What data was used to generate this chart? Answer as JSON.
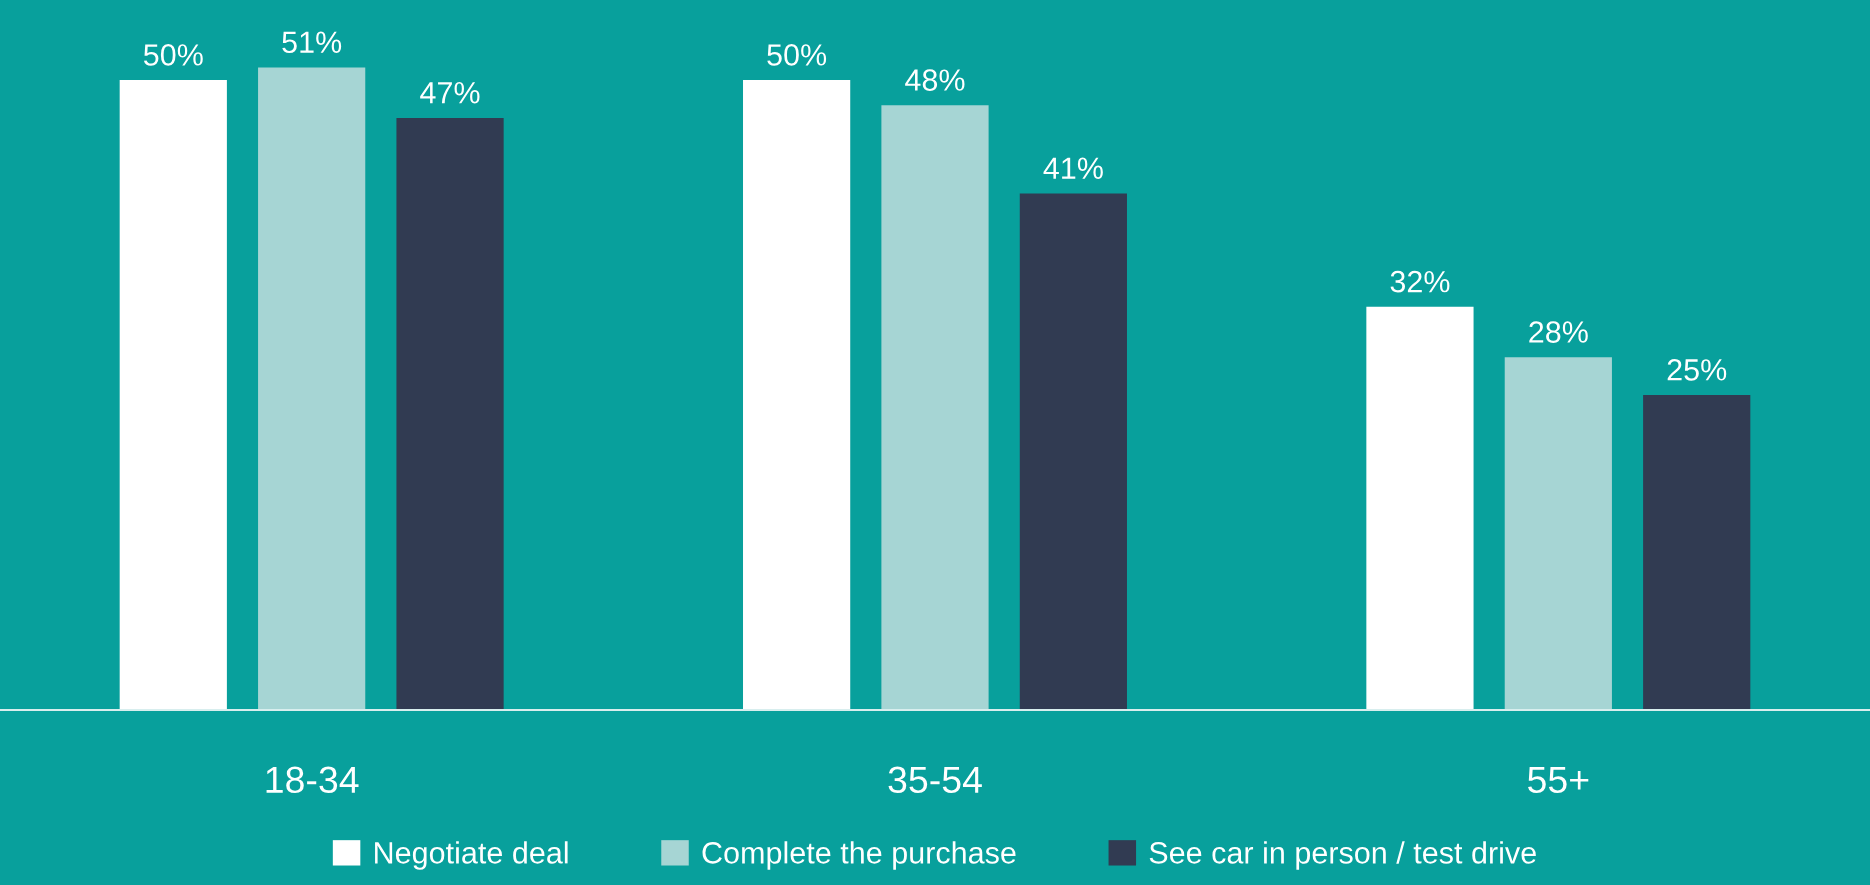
{
  "chart_data": {
    "type": "bar",
    "categories": [
      "18-34",
      "35-54",
      "55+"
    ],
    "series": [
      {
        "name": "Negotiate deal",
        "color": "#ffffff",
        "values": [
          50,
          50,
          32
        ],
        "value_labels": [
          "50%",
          "50%",
          "32%"
        ]
      },
      {
        "name": "Complete the purchase",
        "color": "#a6d5d4",
        "values": [
          51,
          48,
          28
        ],
        "value_labels": [
          "51%",
          "48%",
          "28%"
        ]
      },
      {
        "name": "See car in person / test drive",
        "color": "#313b52",
        "values": [
          47,
          41,
          25
        ],
        "value_labels": [
          "47%",
          "41%",
          "25%"
        ]
      }
    ],
    "grid": false,
    "legend": "bottom"
  }
}
